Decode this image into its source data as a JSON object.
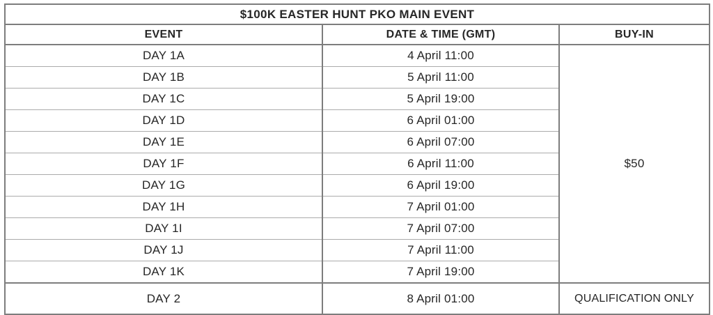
{
  "table": {
    "title": "$100K EASTER HUNT PKO MAIN EVENT",
    "columns": [
      {
        "label": "EVENT"
      },
      {
        "label": "DATE & TIME (GMT)"
      },
      {
        "label": "BUY-IN"
      }
    ],
    "day1_rows": [
      {
        "event": "DAY 1A",
        "datetime": "4 April 11:00"
      },
      {
        "event": "DAY 1B",
        "datetime": "5 April 11:00"
      },
      {
        "event": "DAY 1C",
        "datetime": "5 April 19:00"
      },
      {
        "event": "DAY 1D",
        "datetime": "6 April 01:00"
      },
      {
        "event": "DAY 1E",
        "datetime": "6 April 07:00"
      },
      {
        "event": "DAY 1F",
        "datetime": "6 April 11:00"
      },
      {
        "event": "DAY 1G",
        "datetime": "6 April 19:00"
      },
      {
        "event": "DAY 1H",
        "datetime": "7 April 01:00"
      },
      {
        "event": "DAY 1I",
        "datetime": "7 April 07:00"
      },
      {
        "event": "DAY 1J",
        "datetime": "7 April 11:00"
      },
      {
        "event": "DAY 1K",
        "datetime": "7 April 19:00"
      }
    ],
    "day1_buyin": "$50",
    "day2_row": {
      "event": "DAY 2",
      "datetime": "8 April 01:00",
      "buyin": "QUALIFICATION ONLY"
    }
  },
  "colors": {
    "border_major": "#7d7d7d",
    "border_minor": "#ababab",
    "text": "#262626",
    "background": "#ffffff"
  }
}
